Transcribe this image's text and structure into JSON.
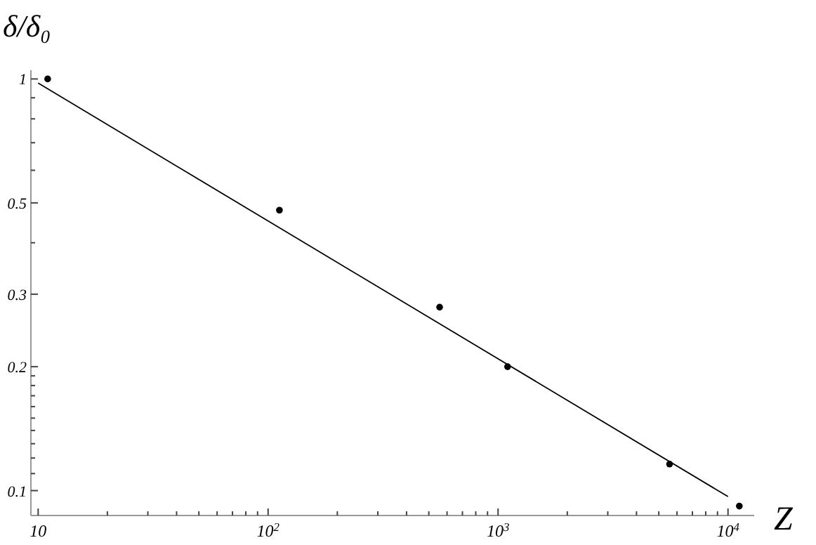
{
  "chart_data": {
    "type": "scatter",
    "ylabel": "δ/δ₀",
    "xlabel": "Z",
    "log": "xy",
    "marker": "circle",
    "grid": false,
    "xlim": [
      9.3,
      13000
    ],
    "ylim": [
      0.087,
      1.05
    ],
    "xticks": [
      10,
      {
        "value": 20,
        "label": null
      },
      {
        "value": 30,
        "label": null
      },
      {
        "value": 40,
        "label": null
      },
      {
        "value": 50,
        "label": null
      },
      {
        "value": 60,
        "label": null
      },
      {
        "value": 70,
        "label": null
      },
      {
        "value": 80,
        "label": null
      },
      {
        "value": 90,
        "label": null
      },
      {
        "value": 100,
        "label": "10$^{2}$"
      },
      {
        "value": 200,
        "label": null
      },
      {
        "value": 300,
        "label": null
      },
      {
        "value": 400,
        "label": null
      },
      {
        "value": 500,
        "label": null
      },
      {
        "value": 600,
        "label": null
      },
      {
        "value": 700,
        "label": null
      },
      {
        "value": 800,
        "label": null
      },
      {
        "value": 900,
        "label": null
      },
      {
        "value": 1000,
        "label": "10$^{3}$"
      },
      {
        "value": 2000,
        "label": null
      },
      {
        "value": 3000,
        "label": null
      },
      {
        "value": 4000,
        "label": null
      },
      {
        "value": 5000,
        "label": null
      },
      {
        "value": 6000,
        "label": null
      },
      {
        "value": 7000,
        "label": null
      },
      {
        "value": 8000,
        "label": null
      },
      {
        "value": 9000,
        "label": null
      },
      {
        "value": 10000,
        "label": "10$^{4}$"
      }
    ],
    "yticks": [
      0.1,
      {
        "value": 0.11,
        "label": null
      },
      {
        "value": 0.12,
        "label": null
      },
      {
        "value": 0.13,
        "label": null
      },
      {
        "value": 0.14,
        "label": null
      },
      {
        "value": 0.15,
        "label": null
      },
      {
        "value": 0.16,
        "label": null
      },
      {
        "value": 0.17,
        "label": null
      },
      {
        "value": 0.18,
        "label": null
      },
      {
        "value": 0.19,
        "label": null
      },
      0.2,
      0.3,
      {
        "value": 0.4,
        "label": null
      },
      0.5,
      {
        "value": 0.6,
        "label": null
      },
      {
        "value": 0.7,
        "label": null
      },
      {
        "value": 0.8,
        "label": null
      },
      {
        "value": 0.9,
        "label": null
      },
      1
    ],
    "series": [
      {
        "color": "#000000",
        "x": [
          11,
          112,
          557,
          1100,
          5570,
          11200
        ],
        "values": [
          1.0,
          0.48,
          0.279,
          0.2,
          0.116,
          0.0917
        ]
      },
      {
        "type": "line",
        "color": "#000000",
        "marker": "none",
        "x": [
          10,
          10000
        ],
        "values": [
          0.977,
          0.0967
        ]
      }
    ]
  }
}
